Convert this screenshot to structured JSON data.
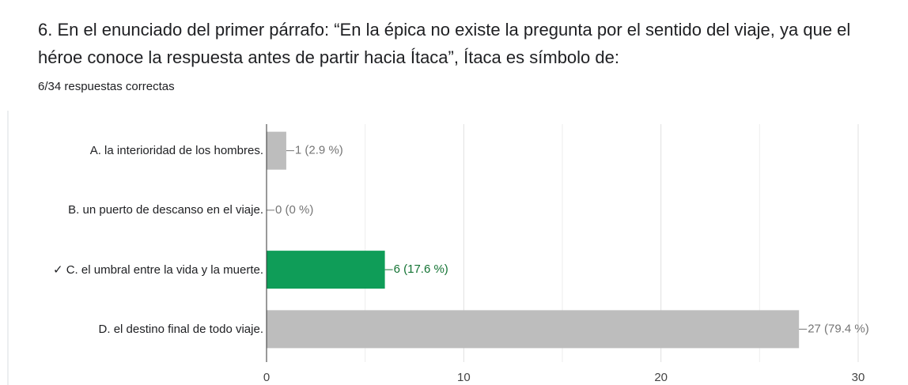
{
  "chart_data": {
    "type": "bar",
    "orientation": "horizontal",
    "title": "6. En el enunciado del primer párrafo: “En la épica no existe la pregunta por el sentido del viaje, ya que el héroe conoce la respuesta antes de partir hacia Ítaca”, Ítaca es símbolo de:",
    "subtitle": "6/34 respuestas correctas",
    "categories": [
      "A. la interioridad de los hombres.",
      "B. un puerto de descanso en el viaje.",
      "✓ C. el umbral entre la vida y la muerte.",
      "D. el destino final de todo viaje."
    ],
    "values": [
      1,
      0,
      6,
      27
    ],
    "value_labels": [
      "1 (2.9 %)",
      "0 (0 %)",
      "6 (17.6 %)",
      "27 (79.4 %)"
    ],
    "colors": [
      "#bdbdbd",
      "#bdbdbd",
      "#0f9d58",
      "#bdbdbd"
    ],
    "label_colors": [
      "#757575",
      "#757575",
      "#137333",
      "#757575"
    ],
    "xlim": [
      0,
      30
    ],
    "xticks": [
      0,
      10,
      20,
      30
    ],
    "minor_xticks": [
      5,
      15,
      25
    ],
    "grid": true
  }
}
